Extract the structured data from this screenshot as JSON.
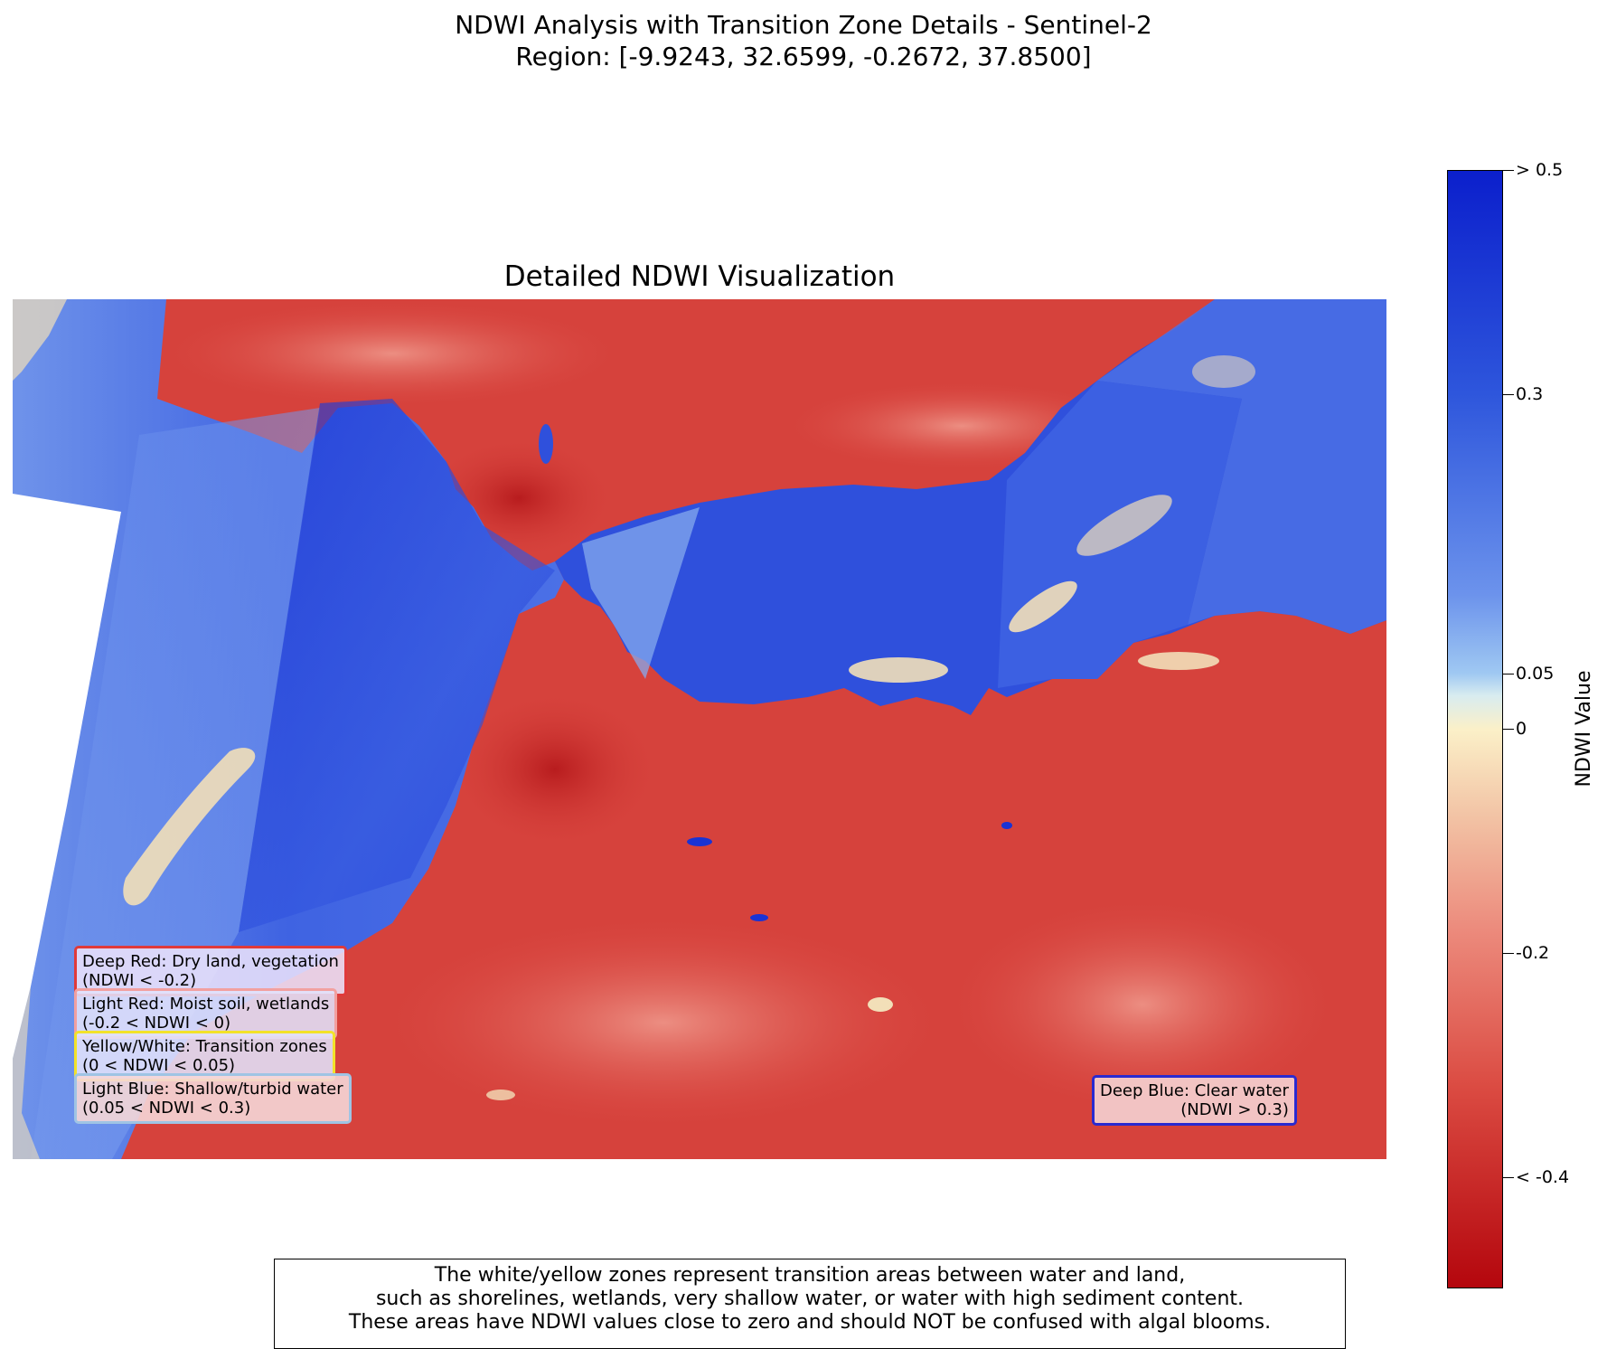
{
  "figure": {
    "title_line1": "NDWI Analysis with Transition Zone Details - Sentinel-2",
    "title_line2": "Region: [-9.9243, 32.6599, -0.2672, 37.8500]"
  },
  "map": {
    "title": "Detailed NDWI Visualization",
    "bbox_lonlat": [
      -9.9243,
      32.6599,
      -0.2672,
      37.85
    ],
    "colormap": "coolwarm_r (red = land, blue = water)",
    "colors": {
      "deep_red": "#c8282a",
      "light_red": "#e8716a",
      "transition": "#f2dfb8",
      "light_blue": "#86a9ee",
      "deep_blue": "#1a33d4",
      "nodata": "#ffffff"
    }
  },
  "legend": {
    "items": [
      {
        "line1": "Deep Red: Dry land, vegetation",
        "line2": "(NDWI < -0.2)",
        "border": "#e03a3a"
      },
      {
        "line1": "Light Red: Moist soil, wetlands",
        "line2": "(-0.2 < NDWI < 0)",
        "border": "#f2a0a0"
      },
      {
        "line1": "Yellow/White: Transition zones",
        "line2": "(0 < NDWI < 0.05)",
        "border": "#f2e22a"
      },
      {
        "line1": "Light Blue: Shallow/turbid water",
        "line2": "(0.05 < NDWI < 0.3)",
        "border": "#9fc4e4"
      }
    ],
    "deep_blue": {
      "line1": "Deep Blue: Clear water",
      "line2": "(NDWI > 0.3)",
      "border": "#2a2ad0"
    }
  },
  "colorbar": {
    "label": "NDWI Value",
    "ticks": [
      {
        "label": "> 0.5",
        "value": 0.5
      },
      {
        "label": "0.3",
        "value": 0.3
      },
      {
        "label": "0.05",
        "value": 0.05
      },
      {
        "label": "0",
        "value": 0
      },
      {
        "label": "-0.2",
        "value": -0.2
      },
      {
        "label": "< -0.4",
        "value": -0.4
      }
    ]
  },
  "note": {
    "line1": "The white/yellow zones represent transition areas between water and land,",
    "line2": "such as shorelines, wetlands, very shallow water, or water with high sediment content.",
    "line3": "These areas have NDWI values close to zero and should NOT be confused with algal blooms."
  }
}
